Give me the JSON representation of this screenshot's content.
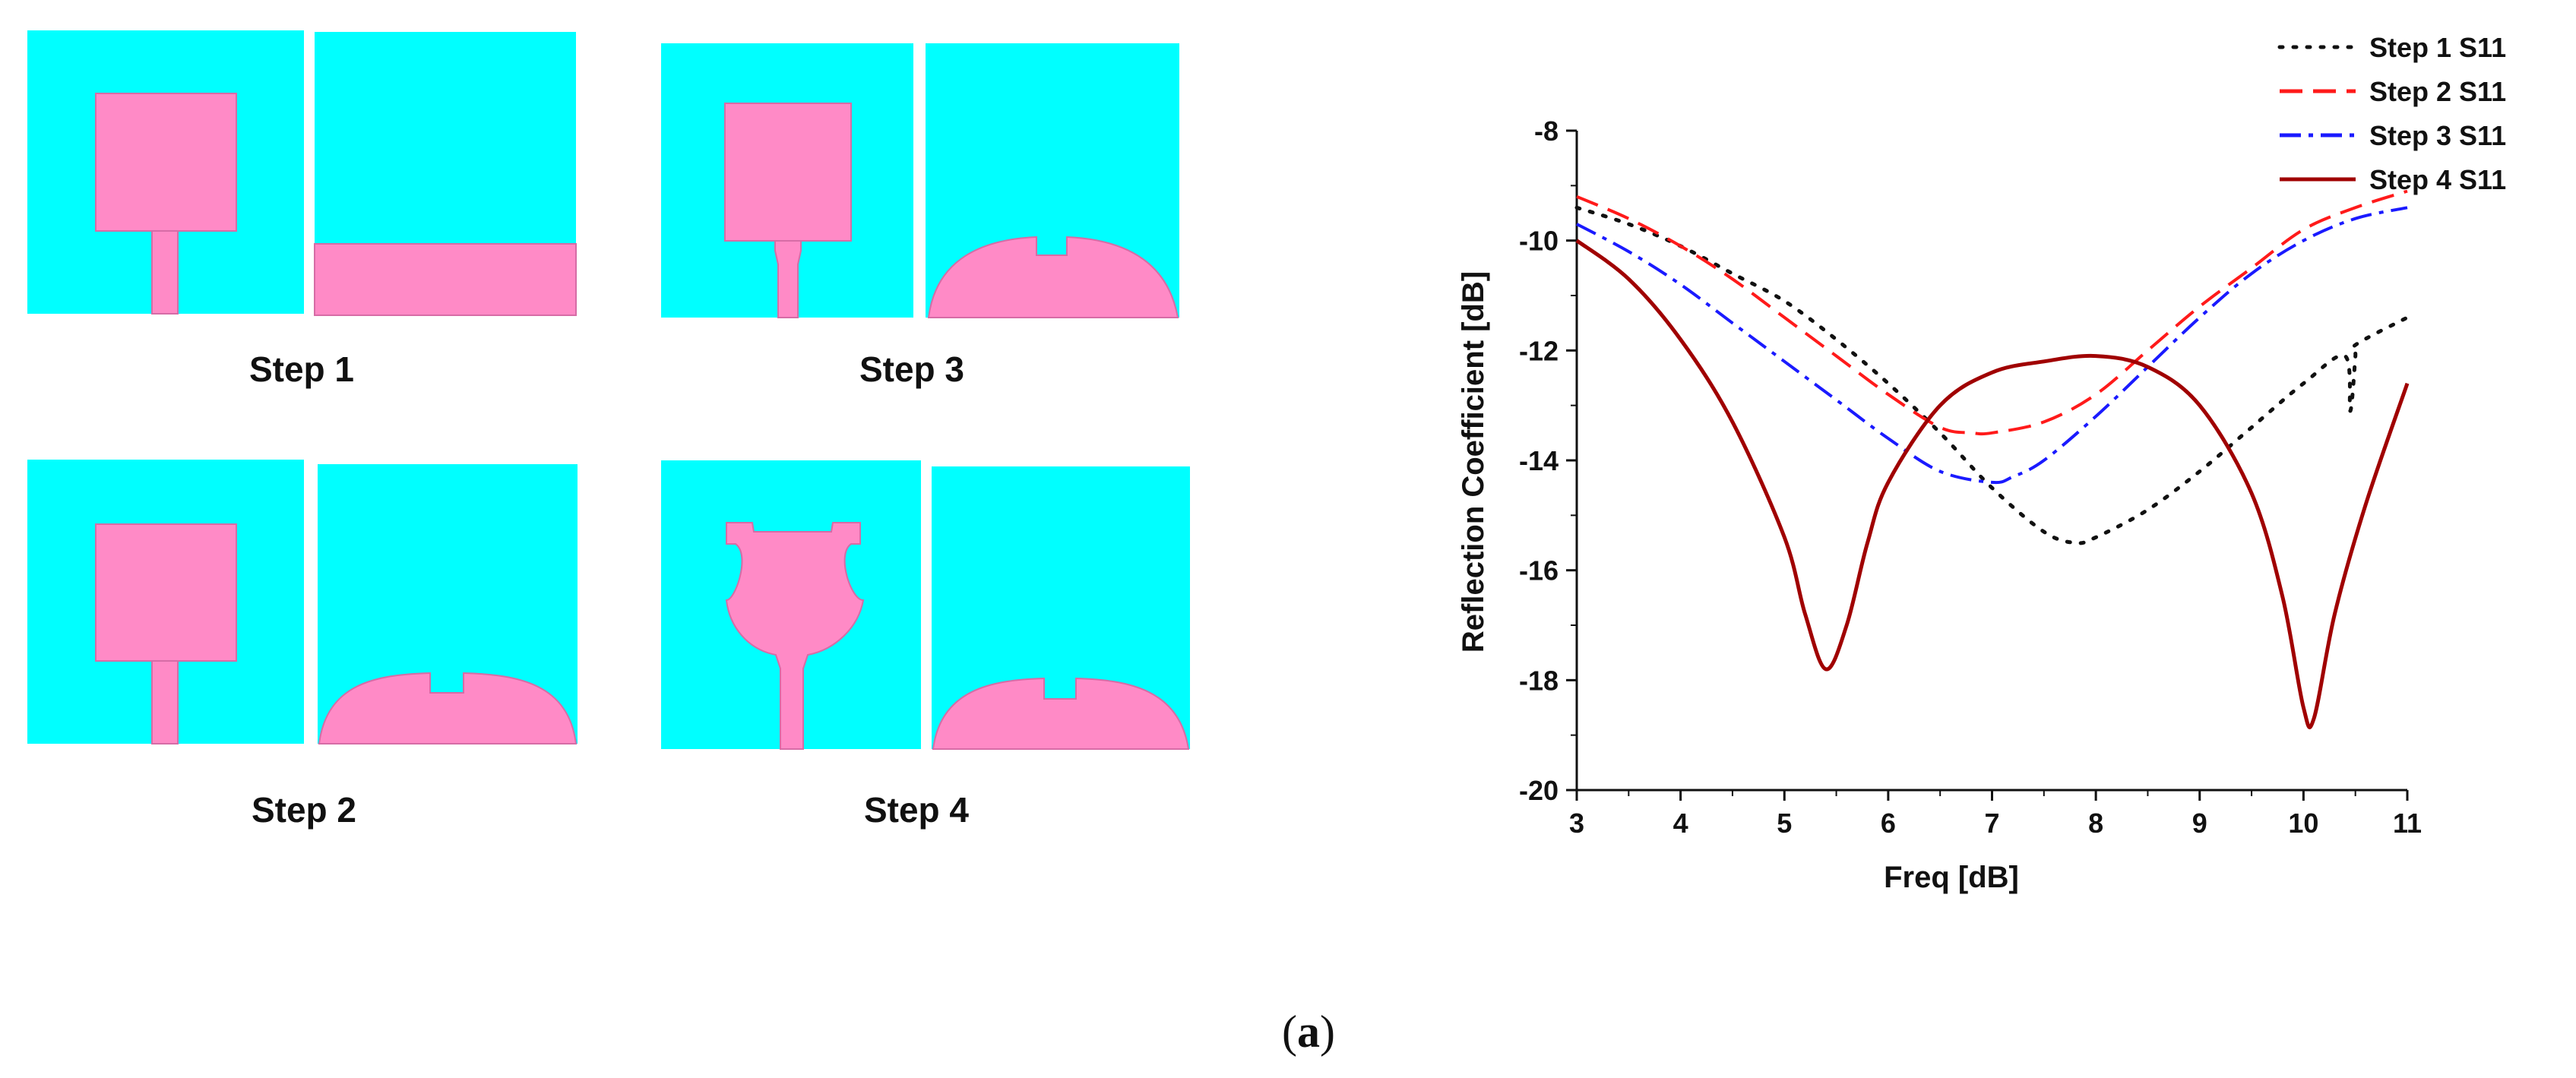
{
  "colors": {
    "substrate": "#00ffff",
    "metal": "#ff8ac6",
    "metal_edge": "#d66ca6",
    "axis": "#111111"
  },
  "antenna_steps": [
    {
      "label": "Step 1",
      "front": "square-patch",
      "back": "rectangular-ground"
    },
    {
      "label": "Step 2",
      "front": "square-patch",
      "back": "curved-slotted-ground"
    },
    {
      "label": "Step 3",
      "front": "square-patch-tapered-feed",
      "back": "curved-slotted-ground"
    },
    {
      "label": "Step 4",
      "front": "notched-cup-patch",
      "back": "curved-slotted-ground"
    }
  ],
  "panel": {
    "open": "(",
    "letter": "a",
    "close": ")"
  },
  "chart_data": {
    "type": "line",
    "title": "",
    "xlabel": "Freq [dB]",
    "ylabel": "Reflection Coefficient [dB]",
    "xlim": [
      3,
      11
    ],
    "ylim": [
      -20,
      -8
    ],
    "xticks": [
      "3",
      "4",
      "5",
      "6",
      "7",
      "8",
      "9",
      "10",
      "11"
    ],
    "yticks": [
      "-8",
      "-10",
      "-12",
      "-14",
      "-16",
      "-18",
      "-20"
    ],
    "grid": false,
    "legend_position": "top-right",
    "series": [
      {
        "name": "Step 1 S11",
        "color": "#111111",
        "style": "dotted",
        "x": [
          3.0,
          3.5,
          4.0,
          4.5,
          5.0,
          5.5,
          6.0,
          6.5,
          7.0,
          7.5,
          7.8,
          8.0,
          8.5,
          9.0,
          9.5,
          10.0,
          10.4,
          10.45,
          10.5,
          10.5,
          11.0
        ],
        "y": [
          -9.4,
          -9.7,
          -10.1,
          -10.6,
          -11.1,
          -11.8,
          -12.6,
          -13.5,
          -14.5,
          -15.3,
          -15.5,
          -15.4,
          -14.9,
          -14.2,
          -13.4,
          -12.6,
          -12.1,
          -13.1,
          -12.1,
          -11.9,
          -11.4
        ]
      },
      {
        "name": "Step 2 S11",
        "color": "#ff1a1a",
        "style": "dashed",
        "x": [
          3.0,
          3.5,
          4.0,
          4.5,
          5.0,
          5.5,
          6.0,
          6.5,
          6.8,
          7.0,
          7.5,
          8.0,
          8.5,
          9.0,
          9.5,
          10.0,
          10.5,
          11.0
        ],
        "y": [
          -9.2,
          -9.6,
          -10.1,
          -10.7,
          -11.4,
          -12.1,
          -12.8,
          -13.4,
          -13.5,
          -13.5,
          -13.3,
          -12.8,
          -12.0,
          -11.2,
          -10.5,
          -9.8,
          -9.4,
          -9.1
        ]
      },
      {
        "name": "Step 3 S11",
        "color": "#1a1aff",
        "style": "dashdot",
        "x": [
          3.0,
          3.5,
          4.0,
          4.5,
          5.0,
          5.5,
          6.0,
          6.5,
          7.0,
          7.2,
          7.5,
          8.0,
          8.5,
          9.0,
          9.5,
          10.0,
          10.5,
          11.0
        ],
        "y": [
          -9.7,
          -10.2,
          -10.8,
          -11.5,
          -12.2,
          -12.9,
          -13.6,
          -14.2,
          -14.4,
          -14.3,
          -14.0,
          -13.2,
          -12.3,
          -11.4,
          -10.6,
          -10.0,
          -9.6,
          -9.4
        ]
      },
      {
        "name": "Step 4 S11",
        "color": "#a00000",
        "style": "solid",
        "x": [
          3.0,
          3.5,
          4.0,
          4.5,
          5.0,
          5.2,
          5.4,
          5.6,
          5.8,
          6.0,
          6.5,
          7.0,
          7.5,
          8.0,
          8.5,
          9.0,
          9.5,
          9.8,
          10.0,
          10.1,
          10.3,
          10.6,
          11.0
        ],
        "y": [
          -10.0,
          -10.7,
          -11.8,
          -13.3,
          -15.4,
          -16.8,
          -17.8,
          -17.0,
          -15.5,
          -14.4,
          -13.0,
          -12.4,
          -12.2,
          -12.1,
          -12.3,
          -13.0,
          -14.6,
          -16.5,
          -18.5,
          -18.7,
          -16.8,
          -14.8,
          -12.6
        ]
      }
    ]
  }
}
